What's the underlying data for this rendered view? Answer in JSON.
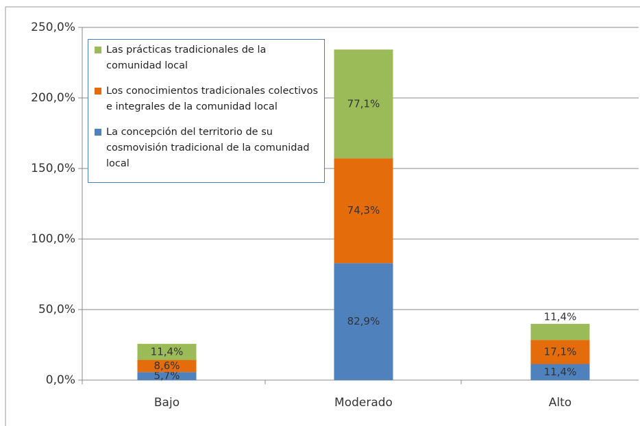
{
  "chart_data": {
    "type": "bar",
    "stacked": true,
    "categories": [
      "Bajo",
      "Moderado",
      "Alto"
    ],
    "series": [
      {
        "name": "La concepción del territorio de su cosmovisión tradicional de la comunidad local",
        "color": "#4f81bd",
        "values": [
          5.7,
          82.9,
          11.4
        ],
        "value_labels": [
          "5,7%",
          "82,9%",
          "11,4%"
        ]
      },
      {
        "name": "Los conocimientos tradicionales colectivos e integrales de la comunidad local",
        "color": "#e46c0a",
        "values": [
          8.6,
          74.3,
          17.1
        ],
        "value_labels": [
          "8,6%",
          "74,3%",
          "17,1%"
        ]
      },
      {
        "name": "Las prácticas tradicionales de la comunidad local",
        "color": "#9bbb59",
        "values": [
          11.4,
          77.1,
          11.4
        ],
        "value_labels": [
          "11,4%",
          "77,1%",
          "11,4%"
        ]
      }
    ],
    "ylim": [
      0,
      250
    ],
    "yticks": [
      {
        "value": 0,
        "label": "0,0%"
      },
      {
        "value": 50,
        "label": "50,0%"
      },
      {
        "value": 100,
        "label": "100,0%"
      },
      {
        "value": 150,
        "label": "150,0%"
      },
      {
        "value": 200,
        "label": "200,0%"
      },
      {
        "value": 250,
        "label": "250,0%"
      }
    ],
    "grid": true,
    "legend": "upper left"
  }
}
